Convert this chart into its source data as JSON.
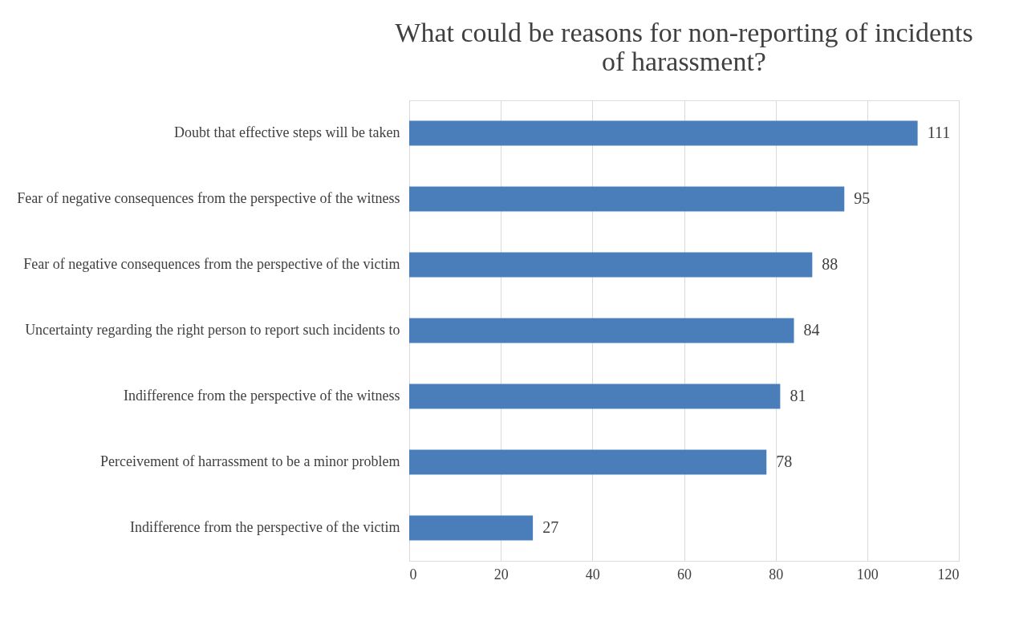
{
  "chart_data": {
    "type": "bar",
    "orientation": "horizontal",
    "title": "What could be reasons for non-reporting of incidents of harassment?",
    "categories": [
      "Doubt that effective steps will be taken",
      "Fear of negative consequences from the perspective of the witness",
      "Fear of negative consequences from the perspective of the victim",
      "Uncertainty regarding the right person to report such incidents to",
      "Indifference from the perspective of the witness",
      "Perceivement of harrassment to be a minor problem",
      "Indifference from the perspective of the victim"
    ],
    "values": [
      111,
      95,
      88,
      84,
      81,
      78,
      27
    ],
    "color": "#4a7ebb",
    "xlim": [
      0,
      120
    ],
    "xticks": [
      0,
      20,
      40,
      60,
      80,
      100,
      120
    ],
    "grid": "x",
    "data_labels": true
  }
}
